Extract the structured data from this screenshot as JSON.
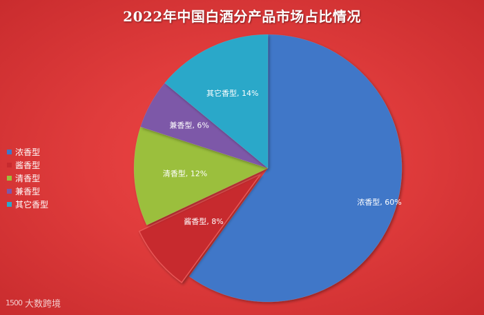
{
  "chart_data": {
    "type": "pie",
    "title": "2022年中国白酒分产品市场占比情况",
    "categories": [
      "浓香型",
      "酱香型",
      "清香型",
      "兼香型",
      "其它香型"
    ],
    "values": [
      60,
      8,
      12,
      6,
      14
    ],
    "unit": "%",
    "data_labels": [
      "浓香型, 60%",
      "酱香型, 8%",
      "清香型, 12%",
      "兼香型, 6%",
      "其它香型, 14%"
    ],
    "colors": [
      "#3f77c8",
      "#c72a2e",
      "#9bbf3c",
      "#7d58a8",
      "#2ba8c9"
    ],
    "exploded": [
      "酱香型"
    ],
    "legend_position": "left"
  },
  "watermark": {
    "logo": "1500",
    "text": "大数跨境"
  }
}
